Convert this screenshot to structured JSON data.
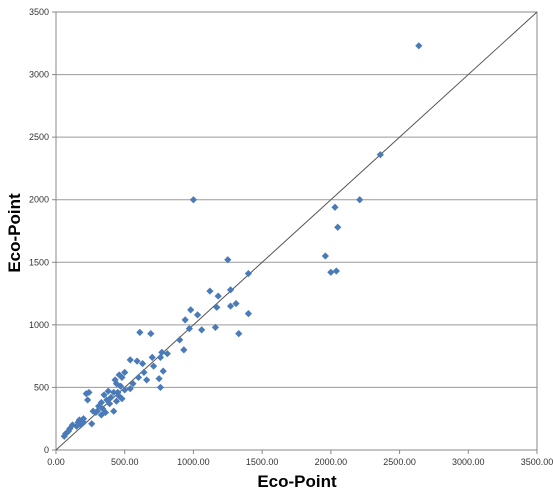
{
  "chart_data": {
    "type": "scatter",
    "title": "",
    "xlabel": "Eco-Point",
    "ylabel": "Eco-Point",
    "xlim": [
      0,
      3500
    ],
    "ylim": [
      0,
      3500
    ],
    "x_ticks": [
      0,
      500,
      1000,
      1500,
      2000,
      2500,
      3000,
      3500
    ],
    "x_tick_labels": [
      "0.00",
      "500.00",
      "1000.00",
      "1500.00",
      "2000.00",
      "2500.00",
      "3000.00",
      "3500.00"
    ],
    "y_ticks": [
      0,
      500,
      1000,
      1500,
      2000,
      2500,
      3000,
      3500
    ],
    "y_tick_labels": [
      "0",
      "500",
      "1000",
      "1500",
      "2000",
      "2500",
      "3000",
      "3500"
    ],
    "grid": "horizontal",
    "reference_line": {
      "from": [
        0,
        0
      ],
      "to": [
        3500,
        3500
      ],
      "color": "#555555"
    },
    "marker": {
      "shape": "diamond",
      "color": "#4a7ab8"
    },
    "points": [
      [
        2640,
        3230
      ],
      [
        2360,
        2360
      ],
      [
        2210,
        2000
      ],
      [
        2030,
        1940
      ],
      [
        2050,
        1780
      ],
      [
        1960,
        1550
      ],
      [
        2000,
        1420
      ],
      [
        2040,
        1430
      ],
      [
        1000,
        2000
      ],
      [
        1250,
        1520
      ],
      [
        1400,
        1410
      ],
      [
        1270,
        1280
      ],
      [
        1120,
        1270
      ],
      [
        1180,
        1230
      ],
      [
        1310,
        1170
      ],
      [
        1270,
        1150
      ],
      [
        1170,
        1140
      ],
      [
        1400,
        1090
      ],
      [
        980,
        1120
      ],
      [
        1030,
        1080
      ],
      [
        940,
        1040
      ],
      [
        970,
        970
      ],
      [
        1060,
        960
      ],
      [
        1160,
        980
      ],
      [
        1330,
        930
      ],
      [
        900,
        880
      ],
      [
        930,
        800
      ],
      [
        610,
        940
      ],
      [
        690,
        930
      ],
      [
        810,
        770
      ],
      [
        770,
        780
      ],
      [
        760,
        740
      ],
      [
        700,
        740
      ],
      [
        540,
        720
      ],
      [
        590,
        710
      ],
      [
        630,
        690
      ],
      [
        710,
        670
      ],
      [
        640,
        620
      ],
      [
        600,
        580
      ],
      [
        780,
        630
      ],
      [
        750,
        570
      ],
      [
        660,
        560
      ],
      [
        500,
        620
      ],
      [
        480,
        580
      ],
      [
        460,
        600
      ],
      [
        430,
        560
      ],
      [
        440,
        530
      ],
      [
        560,
        530
      ],
      [
        470,
        510
      ],
      [
        540,
        490
      ],
      [
        500,
        480
      ],
      [
        760,
        500
      ],
      [
        450,
        460
      ],
      [
        420,
        460
      ],
      [
        380,
        470
      ],
      [
        350,
        440
      ],
      [
        400,
        420
      ],
      [
        460,
        430
      ],
      [
        480,
        410
      ],
      [
        440,
        390
      ],
      [
        370,
        400
      ],
      [
        330,
        380
      ],
      [
        390,
        370
      ],
      [
        310,
        350
      ],
      [
        340,
        330
      ],
      [
        300,
        310
      ],
      [
        420,
        310
      ],
      [
        290,
        300
      ],
      [
        360,
        300
      ],
      [
        330,
        280
      ],
      [
        270,
        310
      ],
      [
        220,
        450
      ],
      [
        240,
        460
      ],
      [
        230,
        400
      ],
      [
        190,
        240
      ],
      [
        170,
        240
      ],
      [
        160,
        220
      ],
      [
        200,
        220
      ],
      [
        180,
        200
      ],
      [
        150,
        190
      ],
      [
        260,
        210
      ],
      [
        120,
        200
      ],
      [
        100,
        170
      ],
      [
        90,
        150
      ],
      [
        70,
        130
      ],
      [
        60,
        110
      ],
      [
        200,
        250
      ]
    ]
  }
}
